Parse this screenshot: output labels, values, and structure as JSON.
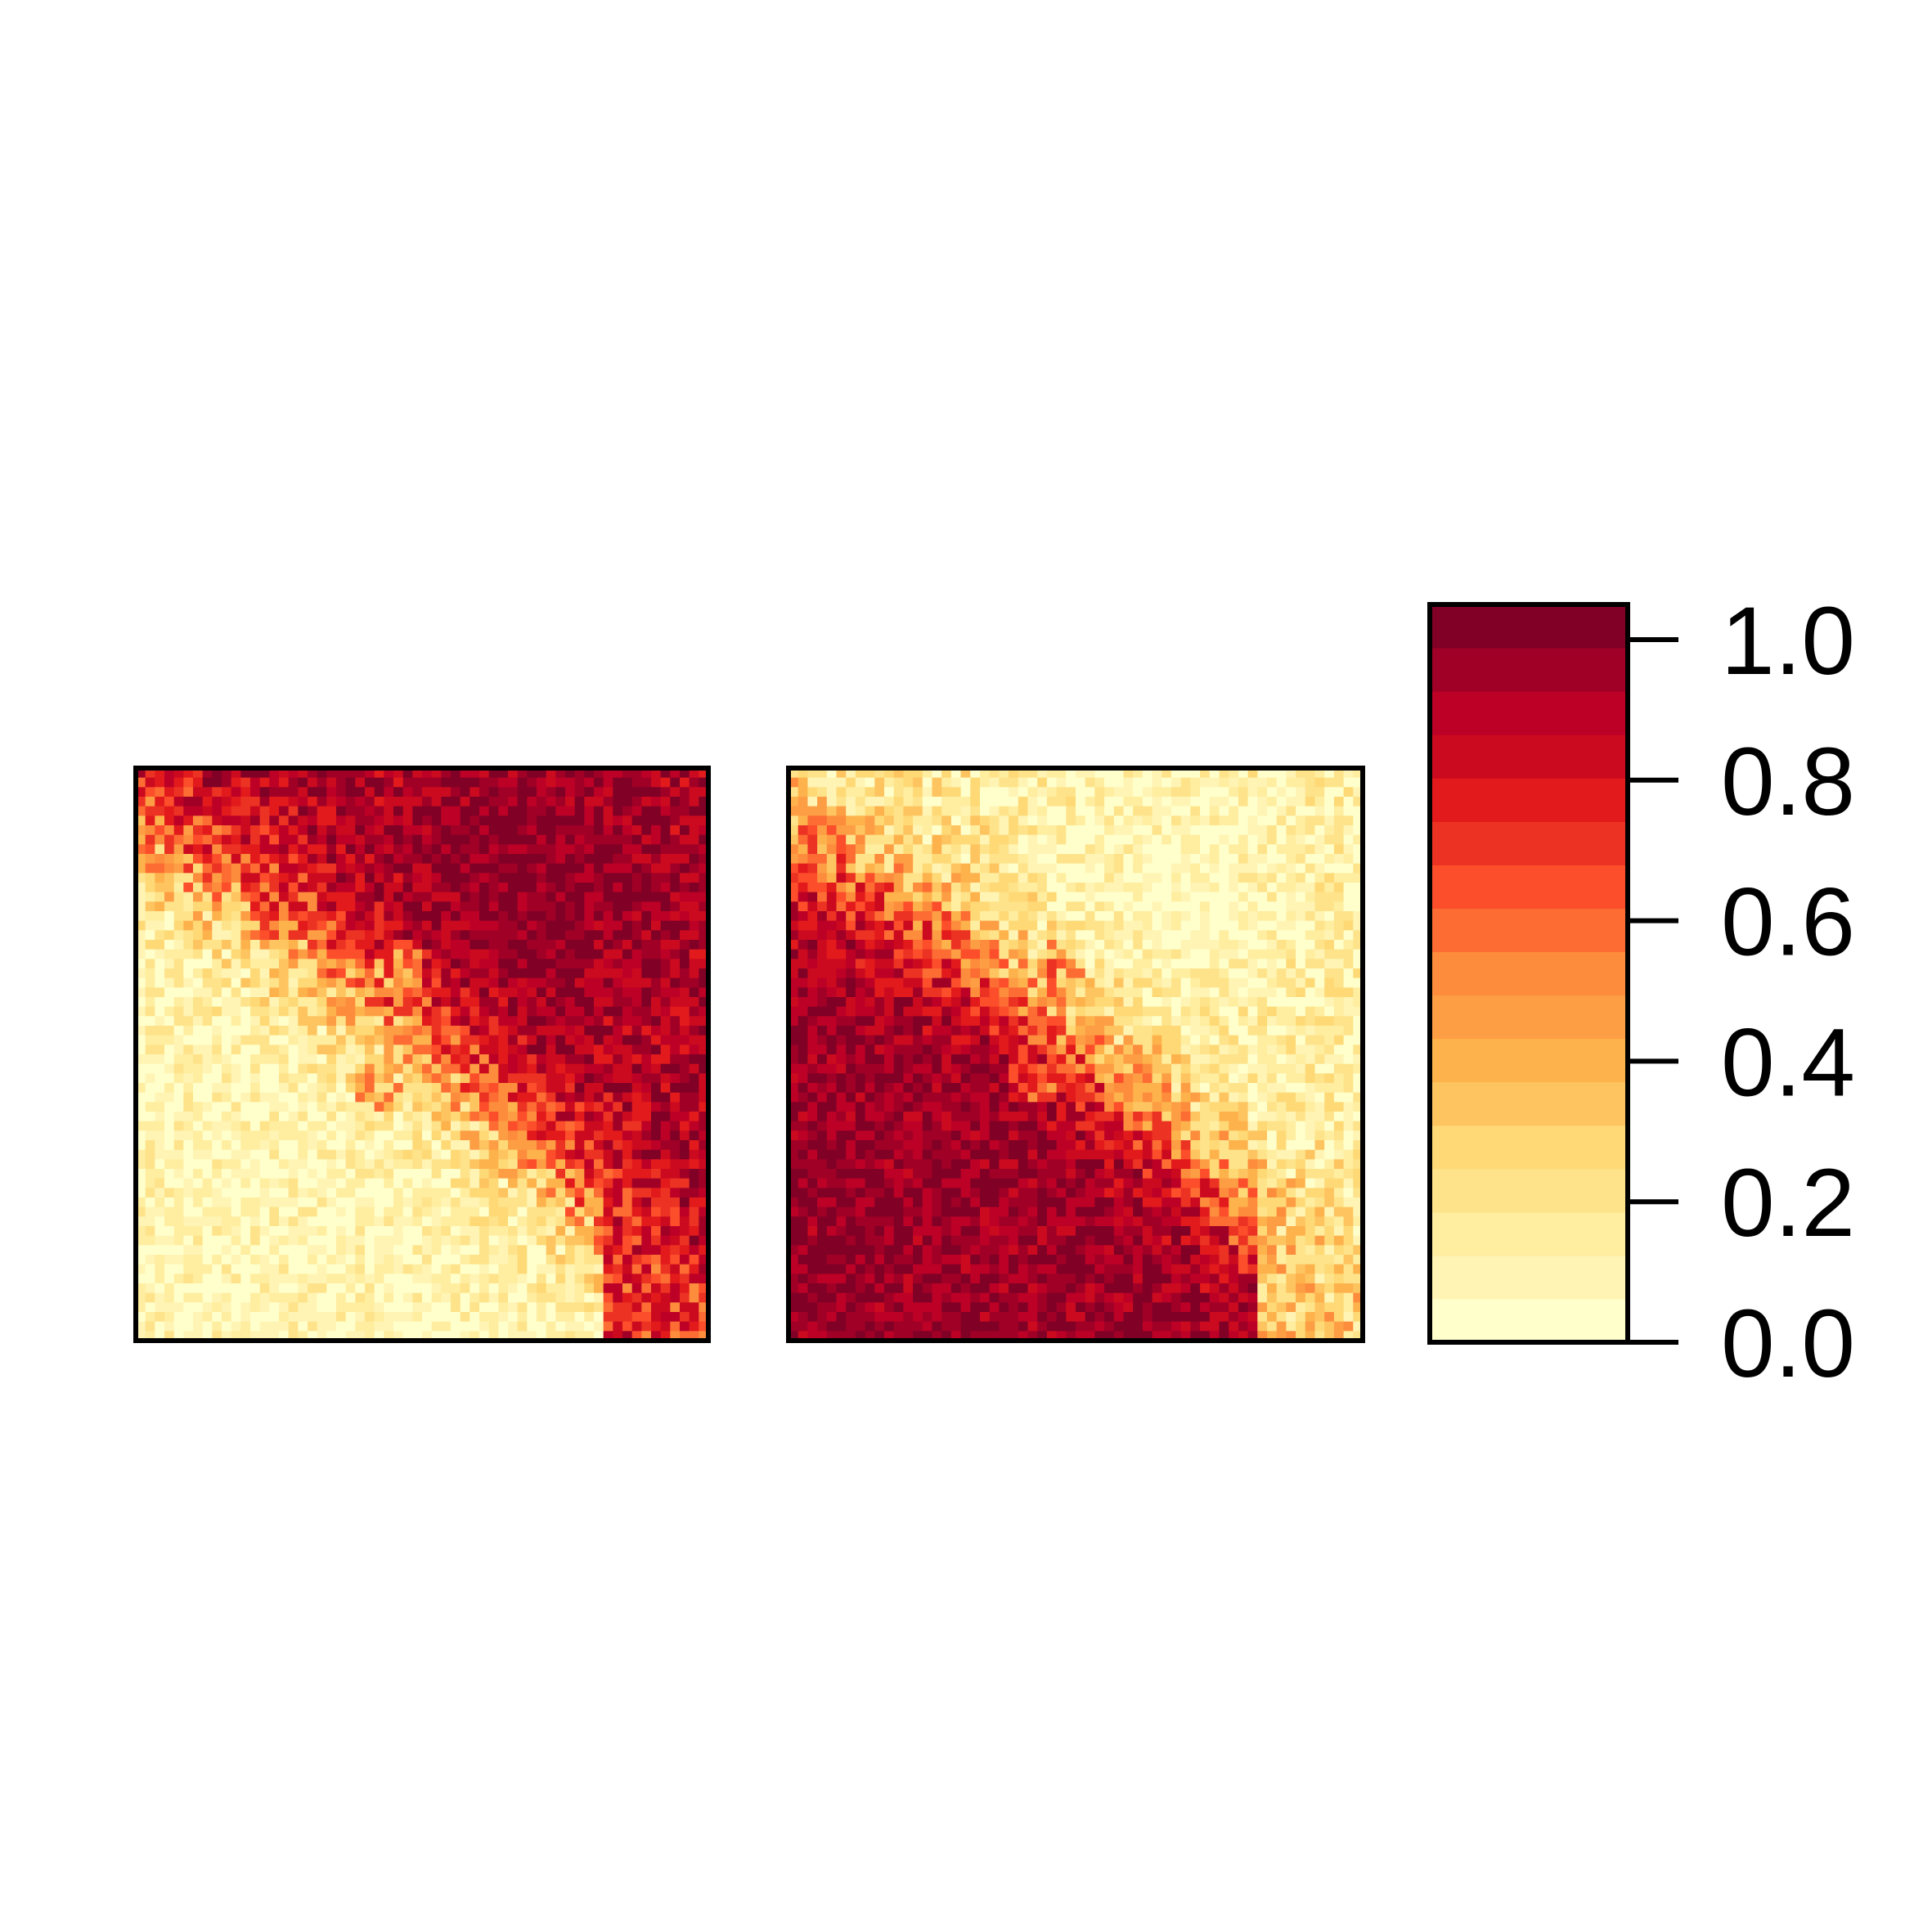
{
  "chart_data": [
    {
      "type": "heatmap",
      "panel": "left",
      "grid": {
        "rows": 60,
        "cols": 60
      },
      "value_range": [
        0,
        1
      ],
      "description_of_pattern": "high values (0.85-1.0) in the upper-right region, a transition band of mid values sweeping diagonally, low values (0.05-0.15) in the lower-left corner, with a small low-value spot near the upper centre",
      "blobs": [
        {
          "cx": 0.46,
          "cy": 0.35,
          "r": 0.045,
          "value": 0.4
        },
        {
          "cx": 0.42,
          "cy": 0.56,
          "r": 0.04,
          "value": 0.5
        }
      ]
    },
    {
      "type": "heatmap",
      "panel": "middle",
      "grid": {
        "rows": 60,
        "cols": 60
      },
      "value_range": [
        0,
        1
      ],
      "description_of_pattern": "complement of the left panel: low values (0.05-0.2) in the upper-right region, high values (0.85-0.95) in the lower-left corner band, mid-value transition diagonal",
      "blobs": [
        {
          "cx": 0.47,
          "cy": 0.35,
          "r": 0.045,
          "value": 0.55
        },
        {
          "cx": 0.42,
          "cy": 0.55,
          "r": 0.04,
          "value": 0.6
        }
      ]
    }
  ],
  "colorbar": {
    "min": 0,
    "max": 1.05,
    "ticks": [
      0.0,
      0.2,
      0.4,
      0.6,
      0.8,
      1.0
    ],
    "tick_labels": [
      "0.0",
      "0.2",
      "0.4",
      "0.6",
      "0.8",
      "1.0"
    ],
    "colors": [
      "#ffffcc",
      "#fff4b4",
      "#ffeda0",
      "#fee38a",
      "#fed976",
      "#fec460",
      "#feb24c",
      "#fd9e44",
      "#fd8d3c",
      "#fc6c33",
      "#fc4e2a",
      "#ec3223",
      "#e31a1c",
      "#cc0a1f",
      "#bd0026",
      "#a10026",
      "#800026"
    ]
  }
}
